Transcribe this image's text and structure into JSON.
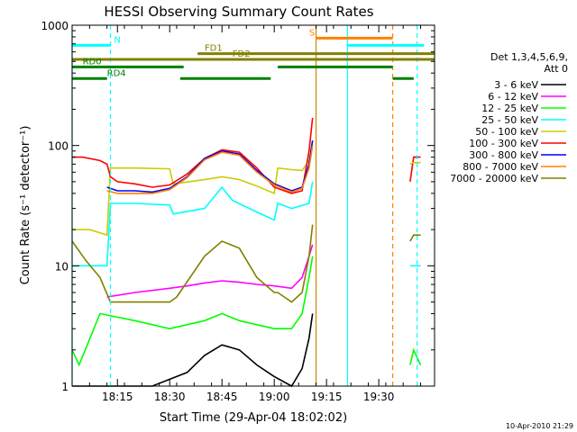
{
  "chart_data": {
    "type": "line",
    "title": "HESSI Observing Summary Count Rates",
    "xlabel": "Start Time (29-Apr-04 18:02:02)",
    "ylabel": "Count Rate (s⁻¹ detector⁻¹)",
    "xlim": [
      "18:02",
      "19:46"
    ],
    "ylim": [
      1,
      1000
    ],
    "y_scale": "log",
    "x_ticks": [
      "18:15",
      "18:30",
      "18:45",
      "19:00",
      "19:15",
      "19:30"
    ],
    "y_ticks": [
      "1",
      "10",
      "100",
      "1000"
    ],
    "legend_position": "right",
    "legend_header": [
      "Det 1,3,4,5,6,9,",
      "Att 0"
    ],
    "timestamp": "10-Apr-2010 21:29",
    "series": [
      {
        "name": "3 - 6 keV",
        "color": "#000000",
        "x": [
          "18:02",
          "18:12",
          "18:25",
          "18:35",
          "18:40",
          "18:45",
          "18:50",
          "18:55",
          "19:00",
          "19:05",
          "19:08",
          "19:10",
          "19:11"
        ],
        "y": [
          1,
          1,
          1,
          1.3,
          1.8,
          2.2,
          2.0,
          1.5,
          1.2,
          1.0,
          1.4,
          2.5,
          4
        ]
      },
      {
        "name": "6 - 12 keV",
        "color": "#ff00ff",
        "x": [
          "18:12",
          "18:20",
          "18:30",
          "18:35",
          "18:40",
          "18:45",
          "18:50",
          "18:55",
          "19:00",
          "19:05",
          "19:08",
          "19:10",
          "19:11"
        ],
        "y": [
          5.5,
          6,
          6.5,
          6.8,
          7.2,
          7.5,
          7.3,
          7,
          6.8,
          6.5,
          8,
          12,
          15
        ]
      },
      {
        "name": "12 - 25 keV",
        "color": "#00ff00",
        "x": [
          "18:02",
          "18:04",
          "18:10",
          "18:20",
          "18:30",
          "18:40",
          "18:45",
          "18:50",
          "19:00",
          "19:05",
          "19:08",
          "19:10",
          "19:11"
        ],
        "y": [
          2,
          1.5,
          4,
          3.5,
          3,
          3.5,
          4,
          3.5,
          3,
          3,
          4,
          8,
          12
        ]
      },
      {
        "name": "25 - 50 keV",
        "color": "#00ffff",
        "x": [
          "18:02",
          "18:12",
          "18:13",
          "18:20",
          "18:30",
          "18:31",
          "18:40",
          "18:45",
          "18:48",
          "18:55",
          "19:00",
          "19:01",
          "19:05",
          "19:10",
          "19:11"
        ],
        "y": [
          10,
          10,
          33,
          33,
          32,
          27,
          30,
          45,
          35,
          28,
          24,
          33,
          30,
          33,
          50
        ]
      },
      {
        "name": "50 - 100 keV",
        "color": "#cccc00",
        "x": [
          "18:02",
          "18:07",
          "18:12",
          "18:13",
          "18:20",
          "18:30",
          "18:31",
          "18:40",
          "18:45",
          "18:50",
          "18:55",
          "19:00",
          "19:01",
          "19:05",
          "19:08",
          "19:10",
          "19:11"
        ],
        "y": [
          20,
          20,
          18,
          65,
          65,
          64,
          48,
          52,
          55,
          52,
          46,
          40,
          65,
          63,
          62,
          75,
          110
        ]
      },
      {
        "name": "100 - 300 keV",
        "color": "#ff0000",
        "x": [
          "18:02",
          "18:05",
          "18:10",
          "18:12",
          "18:13",
          "18:15",
          "18:20",
          "18:25",
          "18:30",
          "18:35",
          "18:40",
          "18:45",
          "18:50",
          "18:55",
          "19:00",
          "19:05",
          "19:08",
          "19:10",
          "19:11"
        ],
        "y": [
          80,
          80,
          75,
          70,
          55,
          50,
          48,
          45,
          47,
          58,
          78,
          92,
          88,
          65,
          45,
          40,
          42,
          90,
          170
        ]
      },
      {
        "name": "300 - 800 keV",
        "color": "#0000ff",
        "x": [
          "18:12",
          "18:15",
          "18:20",
          "18:25",
          "18:30",
          "18:35",
          "18:40",
          "18:45",
          "18:50",
          "18:55",
          "19:00",
          "19:05",
          "19:08",
          "19:10",
          "19:11"
        ],
        "y": [
          45,
          42,
          42,
          41,
          44,
          55,
          78,
          90,
          85,
          62,
          48,
          42,
          45,
          70,
          110
        ]
      },
      {
        "name": "800 - 7000 keV",
        "color": "#ff8000",
        "x": [
          "18:12",
          "18:15",
          "18:20",
          "18:25",
          "18:30",
          "18:35",
          "18:40",
          "18:45",
          "18:50",
          "18:55",
          "19:00",
          "19:05",
          "19:08",
          "19:10",
          "19:11"
        ],
        "y": [
          42,
          40,
          40,
          40,
          43,
          54,
          76,
          88,
          83,
          60,
          47,
          41,
          44,
          65,
          100
        ]
      },
      {
        "name": "7000 - 20000 keV",
        "color": "#808000",
        "x": [
          "18:02",
          "18:06",
          "18:10",
          "18:13",
          "18:20",
          "18:30",
          "18:32",
          "18:40",
          "18:45",
          "18:50",
          "18:55",
          "19:00",
          "19:01",
          "19:05",
          "19:08",
          "19:10",
          "19:11"
        ],
        "y": [
          16,
          11,
          8,
          5,
          5,
          5,
          5.5,
          12,
          16,
          14,
          8,
          6,
          6,
          5,
          6,
          12,
          22
        ]
      }
    ],
    "post_gap_series": [
      {
        "color": "#ff0000",
        "x": [
          "19:39",
          "19:40",
          "19:42"
        ],
        "y": [
          50,
          80,
          80
        ]
      },
      {
        "color": "#cccc00",
        "x": [
          "19:39",
          "19:40",
          "19:42"
        ],
        "y": [
          70,
          72,
          72
        ]
      },
      {
        "color": "#00ffff",
        "x": [
          "19:39",
          "19:40",
          "19:42"
        ],
        "y": [
          10,
          10,
          10
        ]
      },
      {
        "color": "#808000",
        "x": [
          "19:39",
          "19:40",
          "19:42"
        ],
        "y": [
          16,
          18,
          18
        ]
      },
      {
        "color": "#00ff00",
        "x": [
          "19:39",
          "19:40",
          "19:42"
        ],
        "y": [
          1.5,
          2,
          1.5
        ]
      }
    ],
    "vertical_lines": [
      {
        "time": "18:02",
        "color": "#00ffff",
        "style": "solid"
      },
      {
        "time": "18:13",
        "color": "#00ffff",
        "style": "dashed"
      },
      {
        "time": "19:12",
        "color": "#cc8800",
        "style": "solid"
      },
      {
        "time": "19:21",
        "color": "#00ffff",
        "style": "solid"
      },
      {
        "time": "19:34",
        "color": "#ff8000",
        "style": "dashed"
      },
      {
        "time": "19:41",
        "color": "#00ffff",
        "style": "dashed"
      }
    ],
    "flag_bars": [
      {
        "label": "N",
        "color": "#00ffff",
        "segments": [
          [
            "18:02",
            "18:13"
          ],
          [
            "19:21",
            "19:43"
          ]
        ],
        "level": 680,
        "label_time": "18:14"
      },
      {
        "label": "S",
        "color": "#ff8000",
        "segments": [
          [
            "19:12",
            "19:34"
          ]
        ],
        "level": 780,
        "label_time": "19:10"
      },
      {
        "label": "FD1",
        "color": "#808000",
        "segments": [
          [
            "18:38",
            "19:46"
          ]
        ],
        "level": 580,
        "label_time": "18:40"
      },
      {
        "label": "FD2",
        "color": "#808000",
        "segments": [
          [
            "18:02",
            "19:46"
          ]
        ],
        "level": 520,
        "label_time": "18:48"
      },
      {
        "label": "RD0",
        "color": "#008000",
        "segments": [
          [
            "18:02",
            "18:34"
          ],
          [
            "19:01",
            "19:34"
          ]
        ],
        "level": 450,
        "label_time": "18:05"
      },
      {
        "label": "RD4",
        "color": "#008000",
        "segments": [
          [
            "18:02",
            "18:12"
          ],
          [
            "18:33",
            "18:59"
          ],
          [
            "19:34",
            "19:40"
          ]
        ],
        "level": 360,
        "label_time": "18:12"
      }
    ]
  }
}
